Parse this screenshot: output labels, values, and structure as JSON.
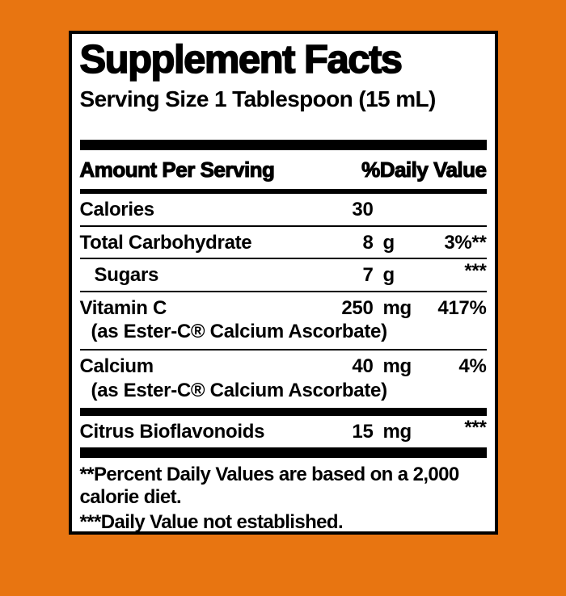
{
  "colors": {
    "background": "#e87511",
    "panel": "#ffffff",
    "ink": "#000000"
  },
  "label": {
    "title": "Supplement Facts",
    "serving_size": "Serving Size 1 Tablespoon (15 mL)",
    "columns": {
      "amount_header": "Amount Per Serving",
      "dv_header": "%Daily Value"
    },
    "rows": [
      {
        "name": "Calories",
        "amount": "30",
        "unit": "",
        "dv": ""
      },
      {
        "name": "Total Carbohydrate",
        "amount": "8",
        "unit": "g",
        "dv": "3%**"
      },
      {
        "name": "Sugars",
        "amount": "7",
        "unit": "g",
        "dv": "***"
      },
      {
        "name": "Vitamin C",
        "amount": "250",
        "unit": "mg",
        "dv": "417%",
        "sub": "(as Ester-C® Calcium Ascorbate)"
      },
      {
        "name": "Calcium",
        "amount": "40",
        "unit": "mg",
        "dv": "4%",
        "sub": "(as Ester-C® Calcium Ascorbate)"
      },
      {
        "name": "Citrus Bioflavonoids",
        "amount": "15",
        "unit": "mg",
        "dv": "***"
      }
    ],
    "footnotes": [
      "**Percent Daily Values are based on a 2,000 calorie diet.",
      "***Daily Value not established."
    ]
  }
}
